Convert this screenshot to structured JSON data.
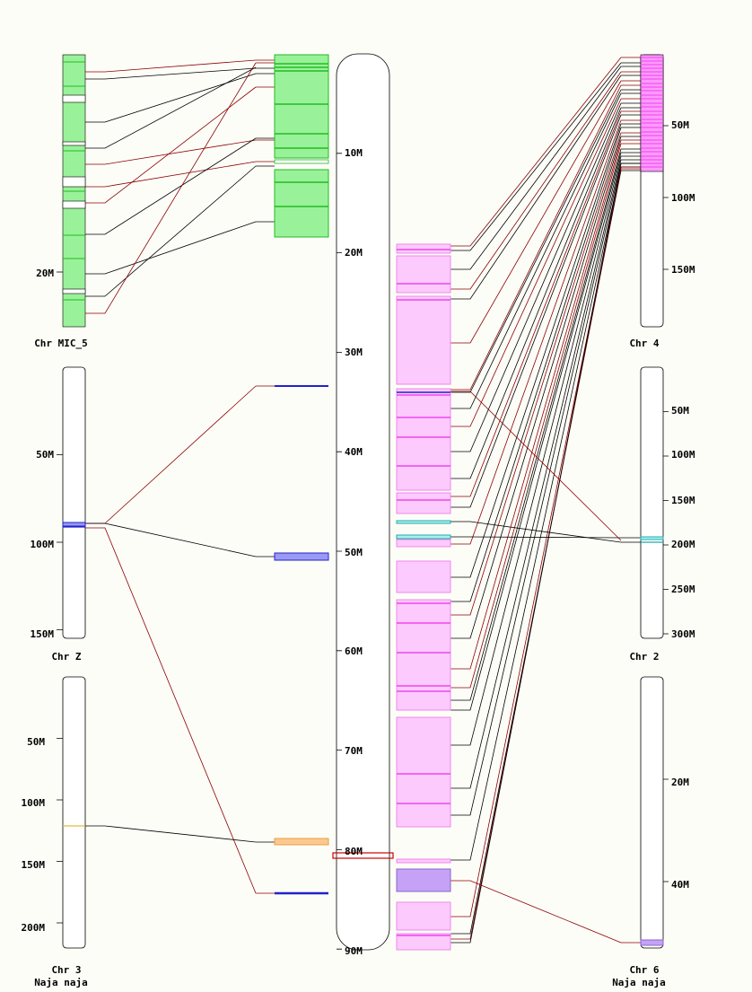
{
  "colors": {
    "background": "#fdfdf8",
    "green_fill": "#99f299",
    "green_line": "#22bb22",
    "pink_fill": "#fccafc",
    "pink_line": "#ee88ee",
    "magenta_fill": "#ff99ff",
    "magenta_line": "#ee44ee",
    "purple_fill": "#c6a2f6",
    "blue": "#2222cc",
    "blue_fill": "#9a9af6",
    "cyan": "#22aaaa",
    "cyan_fill": "#a8f0f0",
    "orange_fill": "#fcc890",
    "black_link": "#000000",
    "red_link": "#8b0000",
    "highlight": "#cc0000"
  },
  "center": {
    "ticks": [
      "10M",
      "20M",
      "30M",
      "40M",
      "50M",
      "60M",
      "70M",
      "80M",
      "90M"
    ],
    "tick_values": [
      10,
      20,
      30,
      40,
      50,
      60,
      70,
      80,
      90
    ],
    "max": 90
  },
  "chromosomes": [
    {
      "id": "mic5",
      "label": "Chr MIC_5",
      "species": "",
      "ticks": [
        "20M"
      ],
      "tick_values": [
        20
      ],
      "max": 27.4
    },
    {
      "id": "chrZ",
      "label": "Chr Z",
      "species": "",
      "ticks": [
        "50M",
        "100M",
        "150M"
      ],
      "tick_values": [
        50,
        100,
        150
      ],
      "max": 156
    },
    {
      "id": "chr3",
      "label": "Chr 3",
      "species": "Naja naja",
      "ticks": [
        "50M",
        "100M",
        "150M",
        "200M"
      ],
      "tick_values": [
        50,
        100,
        150,
        200
      ],
      "max": 215
    },
    {
      "id": "chr4",
      "label": "Chr 4",
      "species": "",
      "ticks": [
        "50M",
        "100M",
        "150M"
      ],
      "tick_values": [
        50,
        100,
        150
      ],
      "max": 185
    },
    {
      "id": "chr2",
      "label": "Chr 2",
      "species": "",
      "ticks": [
        "50M",
        "100M",
        "150M",
        "200M",
        "250M",
        "300M"
      ],
      "tick_values": [
        50,
        100,
        150,
        200,
        250,
        300
      ],
      "max": 305
    },
    {
      "id": "chr6",
      "label": "Chr 6",
      "species": "Naja naja",
      "ticks": [
        "20M",
        "40M"
      ],
      "tick_values": [
        20,
        40
      ],
      "max": 55
    }
  ]
}
